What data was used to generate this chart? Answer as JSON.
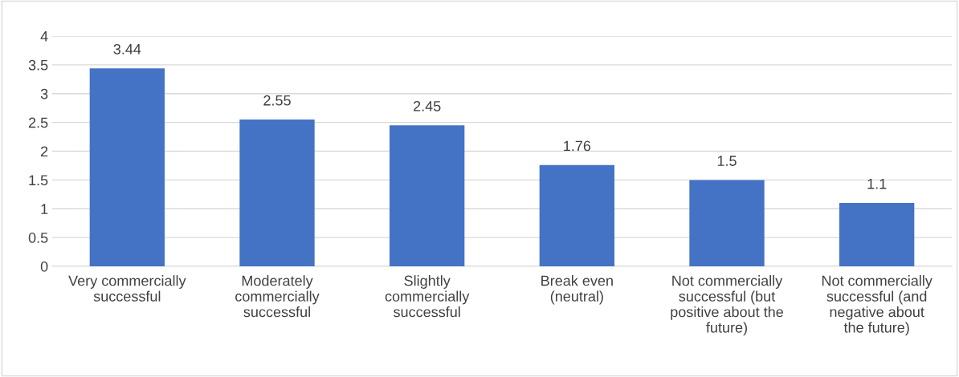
{
  "chart_data": {
    "type": "bar",
    "categories": [
      "Very commercially\nsuccessful",
      "Moderately\ncommercially\nsuccessful",
      "Slightly\ncommercially\nsuccessful",
      "Break even\n(neutral)",
      "Not commercially\nsuccessful (but\npositive about the\nfuture)",
      "Not commercially\nsuccessful (and\nnegative about\nthe future)"
    ],
    "values": [
      3.44,
      2.55,
      2.45,
      1.76,
      1.5,
      1.1
    ],
    "color": "#4472c4",
    "ylim": [
      0,
      4
    ],
    "yticks": [
      0,
      0.5,
      1,
      1.5,
      2,
      2.5,
      3,
      3.5,
      4
    ],
    "grid": "y",
    "data_labels": true
  }
}
